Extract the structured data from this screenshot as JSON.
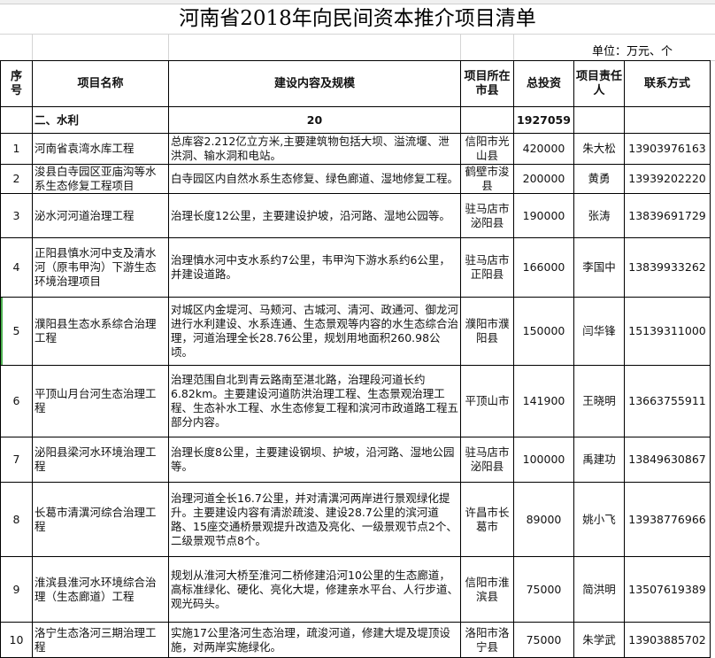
{
  "title": "河南省2018年向民间资本推介项目清单",
  "unit": "单位：万元、个",
  "headers": {
    "seq": "序号",
    "name": "项目名称",
    "content": "建设内容及规模",
    "location": "项目所在市县",
    "investment": "总投资",
    "owner": "项目责任人",
    "contact": "联系方式"
  },
  "section": {
    "label": "二、水利",
    "count": "20",
    "investment": "1927059"
  },
  "rows": [
    {
      "seq": "1",
      "name": "河南省袁湾水库工程",
      "content": "总库容2.212亿立方米,主要建筑物包括大坝、溢流堰、泄洪洞、输水洞和电站。",
      "location": "信阳市光山县",
      "investment": "420000",
      "owner": "朱大松",
      "contact": "13903976163"
    },
    {
      "seq": "2",
      "name": "浚县白寺园区亚庙沟等水系生态修复工程项目",
      "content": "白寺园区内自然水系生态修复、绿色廊道、湿地修复工程。",
      "location": "鹤壁市浚县",
      "investment": "200000",
      "owner": "黄勇",
      "contact": "13939202220"
    },
    {
      "seq": "3",
      "name": "泌水河河道治理工程",
      "content": "治理长度12公里，主要建设护坡，沿河路、湿地公园等。",
      "location": "驻马店市泌阳县",
      "investment": "190000",
      "owner": "张涛",
      "contact": "13839691729"
    },
    {
      "seq": "4",
      "name": "正阳县慎水河中支及清水河（原韦甲沟）下游生态环境治理项目",
      "content": "治理慎水河中支水系约7公里，韦甲沟下游水系约6公里，并建设道路。",
      "location": "驻马店市正阳县",
      "investment": "166000",
      "owner": "李国中",
      "contact": "13839933262"
    },
    {
      "seq": "5",
      "name": "濮阳县生态水系综合治理工程",
      "content": "对城区内金堤河、马颊河、古城河、清河、政通河、御龙河进行水利建设、水系连通、生态景观等内容的水生态综合治理，河道治理全长28.76公里，规划用地面积260.98公顷。",
      "location": "濮阳市濮阳县",
      "investment": "150000",
      "owner": "闫华锋",
      "contact": "15139311000"
    },
    {
      "seq": "6",
      "name": "平顶山月台河生态治理工程",
      "content": "治理范围自北到青云路南至湛北路，治理段河道长约6.82km。主要建设河道防洪治理工程、生态景观治理工程、生态补水工程、水生态修复工程和滨河市政道路工程五部分内容。",
      "location": "平顶山市",
      "investment": "141900",
      "owner": "王晓明",
      "contact": "13663755911"
    },
    {
      "seq": "7",
      "name": "泌阳县梁河水环境治理工程",
      "content": "治理长度8公里，主要建设钢坝、护坡，沿河路、湿地公园等。",
      "location": "驻马店市泌阳县",
      "investment": "100000",
      "owner": "禹建功",
      "contact": "13849630867"
    },
    {
      "seq": "8",
      "name": "长葛市清潩河综合治理工程",
      "content": "治理河道全长16.7公里，并对清潩河两岸进行景观绿化提升。主要建设内容有清淤疏浚、建设28.7公里的滨河道路、15座交通桥景观提升改造及亮化、一级景观节点2个、二级景观节点8个。",
      "location": "许昌市长葛市",
      "investment": "89000",
      "owner": "姚小飞",
      "contact": "13938776966"
    },
    {
      "seq": "9",
      "name": "淮滨县淮河水环境综合治理（生态廊道）工程",
      "content": "规划从淮河大桥至淮河二桥修建沿河10公里的生态廊道，高标准绿化、硬化、亮化大堤，修建亲水平台、人行步道、观光码头。",
      "location": "信阳市淮滨县",
      "investment": "75000",
      "owner": "简洪明",
      "contact": "13507619389"
    },
    {
      "seq": "10",
      "name": "洛宁生态洛河三期治理工程",
      "content": "实施17公里洛河生态治理，疏浚河道，修建大堤及堤顶设施，对两岸实施绿化。",
      "location": "洛阳市洛宁县",
      "investment": "75000",
      "owner": "朱学武",
      "contact": "13903885702"
    }
  ]
}
